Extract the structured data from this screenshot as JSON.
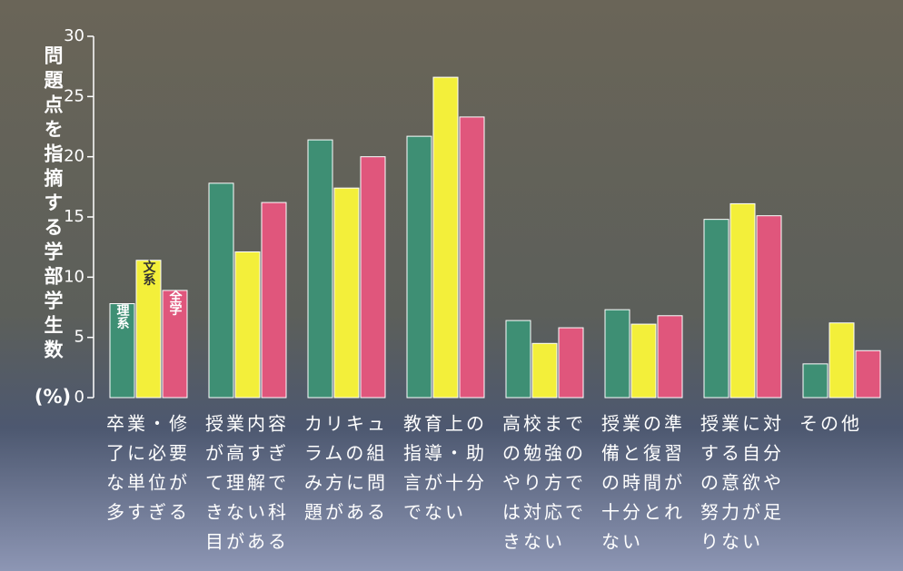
{
  "chart_data": {
    "type": "bar",
    "y_label": "問題点を指摘する学部学生数",
    "y_unit": "(%)",
    "categories": [
      [
        "卒業・修",
        "了に必要",
        "な単位が",
        "多すぎる"
      ],
      [
        "授業内容",
        "が高すぎ",
        "て理解で",
        "きない科",
        "目がある"
      ],
      [
        "カリキュ",
        "ラムの組",
        "み方に問",
        "題がある"
      ],
      [
        "教育上の",
        "指導・助",
        "言が十分",
        "でない"
      ],
      [
        "高校まで",
        "の勉強の",
        "やり方で",
        "は対応で",
        "きない"
      ],
      [
        "授業の準",
        "備と復習",
        "の時間が",
        "十分とれ",
        "ない"
      ],
      [
        "授業に対",
        "する自分",
        "の意欲や",
        "努力が足",
        "りない"
      ],
      [
        "その他"
      ]
    ],
    "series": [
      {
        "name": "理系",
        "color": "#3e8f74",
        "values": [
          7.8,
          17.8,
          21.4,
          21.7,
          6.4,
          7.3,
          14.8,
          2.8
        ]
      },
      {
        "name": "文系",
        "color": "#f3ef3a",
        "values": [
          11.4,
          12.1,
          17.4,
          26.6,
          4.5,
          6.1,
          16.1,
          6.2
        ]
      },
      {
        "name": "全学",
        "color": "#e0567c",
        "values": [
          8.9,
          16.2,
          20.0,
          23.3,
          5.8,
          6.8,
          15.1,
          3.9
        ]
      }
    ],
    "ylim": [
      0,
      30
    ],
    "yticks": [
      0,
      5,
      10,
      15,
      20,
      25,
      30
    ]
  }
}
